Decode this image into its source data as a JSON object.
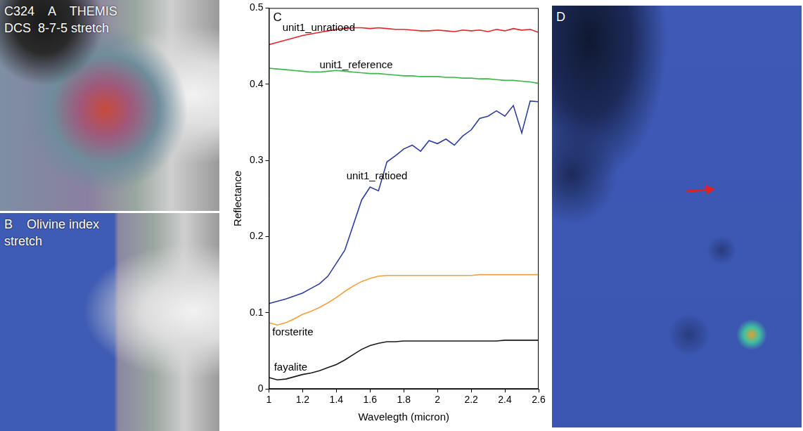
{
  "panels": [
    {
      "letter": "A",
      "lines": [
        "C324    A    THEMIS",
        "DCS  8-7-5 stretch"
      ]
    },
    {
      "letter": "B",
      "lines": [
        "B    Olivine index",
        "stretch"
      ]
    },
    {
      "letter": "D",
      "lines": [
        "D"
      ]
    }
  ],
  "chart_data": {
    "type": "line",
    "panel": "C",
    "x_label": "Wavelegth (micron)",
    "y_label": "Reflectance",
    "x": [
      1.0,
      1.05,
      1.1,
      1.15,
      1.2,
      1.25,
      1.3,
      1.35,
      1.4,
      1.45,
      1.5,
      1.55,
      1.6,
      1.65,
      1.7,
      1.75,
      1.8,
      1.85,
      1.9,
      1.95,
      2.0,
      2.05,
      2.1,
      2.15,
      2.2,
      2.25,
      2.3,
      2.35,
      2.4,
      2.45,
      2.5,
      2.55,
      2.6
    ],
    "xlim": [
      1,
      2.6
    ],
    "xticks": [
      1,
      1.2,
      1.4,
      1.6,
      1.8,
      2,
      2.2,
      2.4,
      2.6
    ],
    "ylim": [
      0,
      0.5
    ],
    "yticks": [
      0,
      0.1,
      0.2,
      0.3,
      0.4,
      0.5
    ],
    "grid": false,
    "series": [
      {
        "name": "unit1_unratioed",
        "color": "#e3242b",
        "label_x": 1.08,
        "label_y": 0.474,
        "values": [
          0.452,
          0.455,
          0.458,
          0.461,
          0.464,
          0.466,
          0.468,
          0.47,
          0.472,
          0.473,
          0.474,
          0.474,
          0.473,
          0.474,
          0.473,
          0.472,
          0.472,
          0.471,
          0.47,
          0.47,
          0.471,
          0.47,
          0.469,
          0.471,
          0.47,
          0.471,
          0.469,
          0.472,
          0.47,
          0.473,
          0.471,
          0.472,
          0.468
        ]
      },
      {
        "name": "unit1_reference",
        "color": "#3bb54a",
        "label_x": 1.3,
        "label_y": 0.425,
        "values": [
          0.421,
          0.42,
          0.419,
          0.418,
          0.417,
          0.416,
          0.416,
          0.417,
          0.418,
          0.417,
          0.416,
          0.415,
          0.414,
          0.414,
          0.413,
          0.412,
          0.411,
          0.411,
          0.41,
          0.41,
          0.41,
          0.409,
          0.409,
          0.408,
          0.408,
          0.407,
          0.407,
          0.406,
          0.405,
          0.405,
          0.404,
          0.403,
          0.401
        ]
      },
      {
        "name": "unit1_ratioed",
        "color": "#2e3d9e",
        "label_x": 1.46,
        "label_y": 0.279,
        "values": [
          0.112,
          0.115,
          0.118,
          0.122,
          0.126,
          0.132,
          0.138,
          0.148,
          0.165,
          0.182,
          0.215,
          0.248,
          0.265,
          0.26,
          0.298,
          0.306,
          0.315,
          0.32,
          0.312,
          0.326,
          0.322,
          0.328,
          0.32,
          0.332,
          0.34,
          0.355,
          0.358,
          0.365,
          0.358,
          0.372,
          0.336,
          0.378,
          0.377
        ]
      },
      {
        "name": "forsterite",
        "color": "#f4a03c",
        "label_x": 1.02,
        "label_y": 0.074,
        "values": [
          0.087,
          0.084,
          0.087,
          0.092,
          0.098,
          0.102,
          0.107,
          0.113,
          0.12,
          0.128,
          0.135,
          0.141,
          0.145,
          0.148,
          0.149,
          0.149,
          0.149,
          0.149,
          0.149,
          0.149,
          0.149,
          0.149,
          0.149,
          0.149,
          0.149,
          0.15,
          0.15,
          0.15,
          0.15,
          0.15,
          0.15,
          0.15,
          0.15
        ]
      },
      {
        "name": "fayalite",
        "color": "#1a1a1a",
        "label_x": 1.03,
        "label_y": 0.028,
        "values": [
          0.015,
          0.012,
          0.013,
          0.016,
          0.019,
          0.021,
          0.024,
          0.028,
          0.032,
          0.038,
          0.045,
          0.052,
          0.057,
          0.06,
          0.062,
          0.062,
          0.063,
          0.063,
          0.063,
          0.063,
          0.063,
          0.063,
          0.063,
          0.063,
          0.063,
          0.063,
          0.063,
          0.063,
          0.064,
          0.064,
          0.064,
          0.064,
          0.064
        ]
      }
    ]
  }
}
